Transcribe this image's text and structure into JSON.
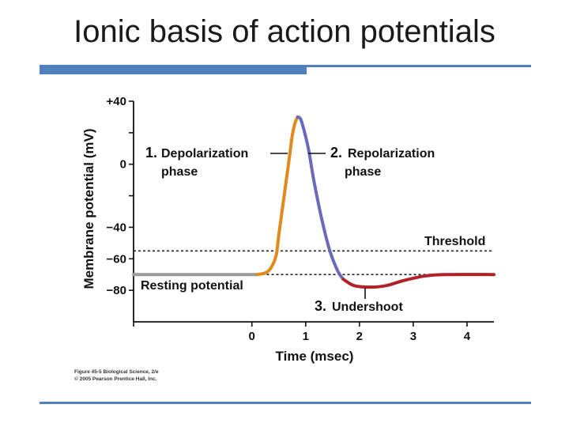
{
  "slide": {
    "title": "Ionic basis of action potentials",
    "credit_line1": "Figure 45-5  Biological Science, 2/e",
    "credit_line2": "© 2005 Pearson Prentice Hall, Inc."
  },
  "colors": {
    "accent": "#4f81bd",
    "resting": "#9a9a9a",
    "depolarization": "#e08a1e",
    "repolarization": "#6a6ab8",
    "undershoot": "#b3202a"
  },
  "chart_data": {
    "type": "line",
    "xlabel": "Time (msec)",
    "ylabel": "Membrane potential (mV)",
    "xlim": [
      -2.2,
      4.5
    ],
    "ylim": [
      -100,
      40
    ],
    "x_ticks": [
      0,
      1,
      2,
      3,
      4
    ],
    "x_tick_labels": [
      "0",
      "1",
      "2",
      "3",
      "4"
    ],
    "y_ticks": [
      40,
      20,
      0,
      -20,
      -40,
      -60,
      -80
    ],
    "y_tick_labels": [
      "+40",
      "",
      "0",
      "",
      "−40",
      "−60",
      "−80"
    ],
    "threshold_mV": -55,
    "resting_mV": -70,
    "series": [
      {
        "phase": "resting",
        "color_key": "resting",
        "points": [
          [
            -2.2,
            -70
          ],
          [
            0.1,
            -70
          ]
        ]
      },
      {
        "phase": "depolarization",
        "color_key": "depolarization",
        "points": [
          [
            0.1,
            -70
          ],
          [
            0.25,
            -69
          ],
          [
            0.35,
            -66
          ],
          [
            0.45,
            -58
          ],
          [
            0.5,
            -45
          ],
          [
            0.6,
            -20
          ],
          [
            0.7,
            5
          ],
          [
            0.75,
            18
          ],
          [
            0.8,
            26
          ],
          [
            0.85,
            30
          ]
        ]
      },
      {
        "phase": "repolarization",
        "color_key": "repolarization",
        "points": [
          [
            0.85,
            30
          ],
          [
            0.9,
            29
          ],
          [
            0.95,
            24
          ],
          [
            1.05,
            10
          ],
          [
            1.15,
            -10
          ],
          [
            1.3,
            -35
          ],
          [
            1.45,
            -55
          ],
          [
            1.6,
            -68
          ],
          [
            1.7,
            -73
          ]
        ]
      },
      {
        "phase": "undershoot",
        "color_key": "undershoot",
        "points": [
          [
            1.7,
            -73
          ],
          [
            1.9,
            -77
          ],
          [
            2.2,
            -78
          ],
          [
            2.5,
            -77
          ],
          [
            2.8,
            -74
          ],
          [
            3.2,
            -71
          ],
          [
            3.6,
            -70
          ],
          [
            4.5,
            -70
          ]
        ]
      }
    ],
    "annotations": {
      "depolarization_num": "1.",
      "depolarization_text": "Depolarization",
      "depolarization_phase": "phase",
      "repolarization_num": "2.",
      "repolarization_text": "Repolarization",
      "repolarization_phase": "phase",
      "threshold": "Threshold",
      "resting": "Resting potential",
      "undershoot_num": "3.",
      "undershoot_text": "Undershoot"
    }
  }
}
